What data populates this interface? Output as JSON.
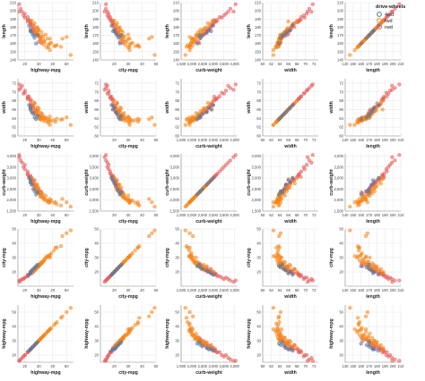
{
  "chart_data": {
    "type": "scatter",
    "layout": "scatter-matrix",
    "legend": {
      "title": "drive-wheels",
      "placement": "top-right",
      "items": [
        {
          "label": "4wd",
          "color": "#4c78a8"
        },
        {
          "label": "fwd",
          "color": "#f58518"
        },
        {
          "label": "rwd",
          "color": "#e45756"
        }
      ]
    },
    "grid": true,
    "point_opacity": 0.55,
    "variables": {
      "highway-mpg": {
        "label": "highway-mpg",
        "domain": [
          15,
          55
        ],
        "ticks": [
          20,
          30,
          40,
          50
        ],
        "tick_labels": [
          "20",
          "30",
          "40",
          "50"
        ]
      },
      "city-mpg": {
        "label": "city-mpg",
        "domain": [
          10,
          50
        ],
        "ticks": [
          20,
          30,
          40,
          50
        ],
        "tick_labels": [
          "20",
          "30",
          "40",
          "50"
        ]
      },
      "curb-weight": {
        "label": "curb-weight",
        "domain": [
          1500,
          4100
        ],
        "ticks": [
          1500,
          2000,
          2500,
          3000,
          3500,
          4000
        ],
        "tick_labels": [
          "1,500",
          "2,000",
          "2,500",
          "3,000",
          "3,500",
          "4,000"
        ]
      },
      "width": {
        "label": "width",
        "domain": [
          60,
          73
        ],
        "ticks": [
          60,
          62,
          64,
          66,
          68,
          70,
          72
        ],
        "tick_labels": [
          "60",
          "62",
          "64",
          "66",
          "68",
          "70",
          "72"
        ]
      },
      "length": {
        "label": "length",
        "domain": [
          140,
          210
        ],
        "ticks": [
          140,
          150,
          160,
          170,
          180,
          190,
          200,
          210
        ],
        "tick_labels": [
          "140",
          "150",
          "160",
          "170",
          "180",
          "190",
          "200",
          "210"
        ]
      }
    },
    "columns": [
      "highway-mpg",
      "city-mpg",
      "curb-weight",
      "width",
      "length"
    ],
    "rows": [
      "length",
      "width",
      "curb-weight",
      "city-mpg",
      "highway-mpg"
    ],
    "fields": [
      "drive-wheels",
      "highway-mpg",
      "city-mpg",
      "curb-weight",
      "width",
      "length"
    ],
    "records": [
      [
        "rwd",
        16,
        13,
        3950,
        70.5,
        199.2
      ],
      [
        "rwd",
        17,
        14,
        3800,
        70.9,
        202.6
      ],
      [
        "rwd",
        18,
        15,
        3700,
        71.4,
        198.9
      ],
      [
        "rwd",
        16,
        14,
        4050,
        71.7,
        208.1
      ],
      [
        "rwd",
        19,
        15,
        3500,
        69.6,
        194.4
      ],
      [
        "rwd",
        20,
        16,
        3400,
        69.8,
        191.7
      ],
      [
        "rwd",
        22,
        17,
        3200,
        68.6,
        189.0
      ],
      [
        "rwd",
        22,
        18,
        3150,
        68.4,
        186.7
      ],
      [
        "rwd",
        23,
        18,
        3050,
        68.9,
        188.8
      ],
      [
        "rwd",
        24,
        19,
        2950,
        67.2,
        184.6
      ],
      [
        "rwd",
        25,
        19,
        2900,
        66.9,
        181.7
      ],
      [
        "rwd",
        24,
        20,
        2800,
        66.5,
        178.5
      ],
      [
        "rwd",
        26,
        20,
        2750,
        66.3,
        176.8
      ],
      [
        "rwd",
        25,
        21,
        2700,
        65.5,
        175.0
      ],
      [
        "rwd",
        27,
        21,
        2650,
        65.4,
        173.2
      ],
      [
        "rwd",
        28,
        22,
        2600,
        66.0,
        172.0
      ],
      [
        "rwd",
        27,
        22,
        2900,
        67.4,
        180.2
      ],
      [
        "rwd",
        29,
        24,
        2500,
        65.7,
        170.7
      ],
      [
        "rwd",
        30,
        24,
        2450,
        64.8,
        168.8
      ],
      [
        "rwd",
        31,
        25,
        2400,
        64.4,
        166.3
      ],
      [
        "rwd",
        24,
        19,
        3050,
        68.0,
        186.0
      ],
      [
        "rwd",
        26,
        21,
        2850,
        66.6,
        177.8
      ],
      [
        "rwd",
        22,
        17,
        3300,
        69.0,
        192.5
      ],
      [
        "rwd",
        20,
        16,
        3600,
        70.3,
        196.5
      ],
      [
        "rwd",
        25,
        20,
        3000,
        67.0,
        183.0
      ],
      [
        "rwd",
        28,
        23,
        2700,
        65.6,
        174.6
      ],
      [
        "rwd",
        30,
        24,
        2300,
        64.2,
        162.0
      ],
      [
        "rwd",
        32,
        26,
        2350,
        64.1,
        160.5
      ],
      [
        "rwd",
        27,
        22,
        2550,
        65.2,
        171.0
      ],
      [
        "rwd",
        24,
        19,
        3100,
        68.3,
        187.5
      ],
      [
        "fwd",
        30,
        24,
        2300,
        64.0,
        170.0
      ],
      [
        "fwd",
        31,
        25,
        2250,
        63.8,
        166.0
      ],
      [
        "fwd",
        32,
        26,
        2150,
        63.6,
        162.0
      ],
      [
        "fwd",
        34,
        28,
        2050,
        63.4,
        158.0
      ],
      [
        "fwd",
        36,
        30,
        1950,
        63.2,
        155.0
      ],
      [
        "fwd",
        38,
        31,
        1900,
        62.5,
        152.0
      ],
      [
        "fwd",
        37,
        31,
        1870,
        63.0,
        156.0
      ],
      [
        "fwd",
        33,
        27,
        2100,
        64.2,
        165.0
      ],
      [
        "fwd",
        29,
        23,
        2400,
        65.0,
        173.0
      ],
      [
        "fwd",
        28,
        22,
        2500,
        65.5,
        176.0
      ],
      [
        "fwd",
        27,
        21,
        2600,
        66.0,
        178.0
      ],
      [
        "fwd",
        30,
        25,
        2350,
        64.5,
        171.0
      ],
      [
        "fwd",
        34,
        29,
        2000,
        63.8,
        163.0
      ],
      [
        "fwd",
        36,
        31,
        2000,
        64.0,
        166.0
      ],
      [
        "fwd",
        38,
        32,
        1950,
        63.6,
        160.0
      ],
      [
        "fwd",
        41,
        35,
        1880,
        63.6,
        157.0
      ],
      [
        "fwd",
        43,
        37,
        1800,
        63.9,
        158.0
      ],
      [
        "fwd",
        46,
        38,
        1750,
        63.7,
        156.0
      ],
      [
        "fwd",
        47,
        45,
        2050,
        63.8,
        166.0
      ],
      [
        "fwd",
        50,
        47,
        1900,
        64.2,
        168.0
      ],
      [
        "fwd",
        53,
        49,
        1700,
        62.5,
        146.0
      ],
      [
        "fwd",
        38,
        30,
        2050,
        64.4,
        166.0
      ],
      [
        "fwd",
        32,
        27,
        2200,
        65.2,
        169.0
      ],
      [
        "fwd",
        30,
        25,
        2550,
        66.3,
        176.0
      ],
      [
        "fwd",
        29,
        24,
        2700,
        66.5,
        180.0
      ],
      [
        "fwd",
        26,
        21,
        2850,
        67.0,
        183.0
      ],
      [
        "fwd",
        25,
        20,
        3000,
        68.0,
        188.0
      ],
      [
        "fwd",
        24,
        19,
        2950,
        66.0,
        187.0
      ],
      [
        "fwd",
        28,
        22,
        2450,
        64.8,
        172.0
      ],
      [
        "fwd",
        32,
        26,
        2300,
        65.0,
        174.0
      ],
      [
        "fwd",
        30,
        24,
        2400,
        65.6,
        177.0
      ],
      [
        "fwd",
        33,
        27,
        2250,
        64.6,
        169.0
      ],
      [
        "fwd",
        35,
        30,
        2200,
        64.2,
        171.0
      ],
      [
        "fwd",
        39,
        33,
        1980,
        63.4,
        161.0
      ],
      [
        "fwd",
        42,
        37,
        1900,
        63.2,
        157.0
      ],
      [
        "fwd",
        27,
        22,
        2750,
        67.5,
        185.0
      ],
      [
        "fwd",
        31,
        26,
        2150,
        63.9,
        164.0
      ],
      [
        "fwd",
        34,
        28,
        2100,
        64.0,
        162.0
      ],
      [
        "fwd",
        29,
        23,
        2600,
        65.8,
        179.0
      ],
      [
        "fwd",
        37,
        31,
        1950,
        63.6,
        159.0
      ],
      [
        "4wd",
        25,
        21,
        2700,
        65.4,
        173.0
      ],
      [
        "4wd",
        24,
        19,
        2900,
        66.0,
        175.0
      ],
      [
        "4wd",
        26,
        22,
        2500,
        65.0,
        170.0
      ],
      [
        "4wd",
        23,
        18,
        3000,
        67.0,
        182.0
      ],
      [
        "4wd",
        28,
        24,
        2250,
        63.8,
        160.0
      ],
      [
        "4wd",
        27,
        23,
        2400,
        64.2,
        167.0
      ],
      [
        "4wd",
        24,
        20,
        2800,
        66.4,
        176.0
      ],
      [
        "4wd",
        29,
        25,
        2350,
        64.6,
        170.0
      ]
    ]
  }
}
